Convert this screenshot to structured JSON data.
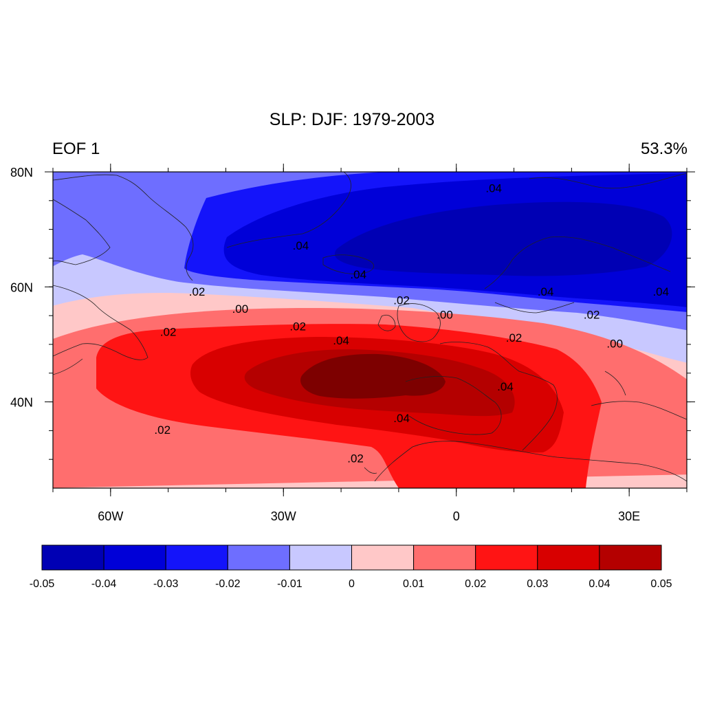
{
  "title": "SLP: DJF: 1979-2003",
  "left_label": "EOF 1",
  "right_label": "53.3%",
  "map": {
    "lat_ticks": [
      {
        "value": 80,
        "label": "80N"
      },
      {
        "value": 60,
        "label": "60N"
      },
      {
        "value": 40,
        "label": "40N"
      }
    ],
    "lon_ticks": [
      {
        "value": -60,
        "label": "60W"
      },
      {
        "value": -30,
        "label": "30W"
      },
      {
        "value": 0,
        "label": "0"
      },
      {
        "value": 30,
        "label": "30E"
      }
    ],
    "lon_range": [
      -70,
      40
    ],
    "lat_range": [
      25,
      80
    ],
    "contour_labels": [
      {
        "text": ".04",
        "lon": 6.5,
        "lat": 77
      },
      {
        "text": ".04",
        "lon": -27,
        "lat": 67
      },
      {
        "text": ".02",
        "lon": -45,
        "lat": 59
      },
      {
        "text": ".04",
        "lon": -17,
        "lat": 62
      },
      {
        "text": ".02",
        "lon": -9.5,
        "lat": 57.5
      },
      {
        "text": ".04",
        "lon": 15.5,
        "lat": 59
      },
      {
        "text": ".04",
        "lon": 35.5,
        "lat": 59
      },
      {
        "text": ".02",
        "lon": 23.5,
        "lat": 55
      },
      {
        "text": ".00",
        "lon": -37.5,
        "lat": 56
      },
      {
        "text": ".00",
        "lon": -2,
        "lat": 55
      },
      {
        "text": ".02",
        "lon": -50,
        "lat": 52
      },
      {
        "text": ".02",
        "lon": -27.5,
        "lat": 53
      },
      {
        "text": ".04",
        "lon": -20,
        "lat": 50.5
      },
      {
        "text": ".02",
        "lon": 10,
        "lat": 51
      },
      {
        "text": ".00",
        "lon": 27.5,
        "lat": 50
      },
      {
        "text": ".04",
        "lon": 8.5,
        "lat": 42.5
      },
      {
        "text": ".04",
        "lon": -9.5,
        "lat": 37
      },
      {
        "text": ".02",
        "lon": -51,
        "lat": 35
      },
      {
        "text": ".02",
        "lon": -17.5,
        "lat": 30
      }
    ]
  },
  "colorbar": {
    "colors": [
      "#0000b4",
      "#0000d8",
      "#1414fa",
      "#6e6eff",
      "#c8c8ff",
      "#ffc8c8",
      "#ff6e6e",
      "#ff1414",
      "#d80000",
      "#b40000"
    ],
    "labels": [
      "-0.05",
      "-0.04",
      "-0.03",
      "-0.02",
      "-0.01",
      "0",
      "0.01",
      "0.02",
      "0.03",
      "0.04",
      "0.05"
    ]
  },
  "palette": {
    "deep_red": "#7d0000",
    "contour_red_1": "#ffc8c8",
    "contour_red_2": "#ff6e6e",
    "contour_red_3": "#ff1414",
    "contour_red_4": "#d80000",
    "contour_red_5": "#b40000",
    "contour_blue_1": "#c8c8ff",
    "contour_blue_2": "#6e6eff",
    "contour_blue_3": "#1414fa",
    "contour_blue_4": "#0000d8",
    "contour_blue_5": "#0000b4"
  }
}
